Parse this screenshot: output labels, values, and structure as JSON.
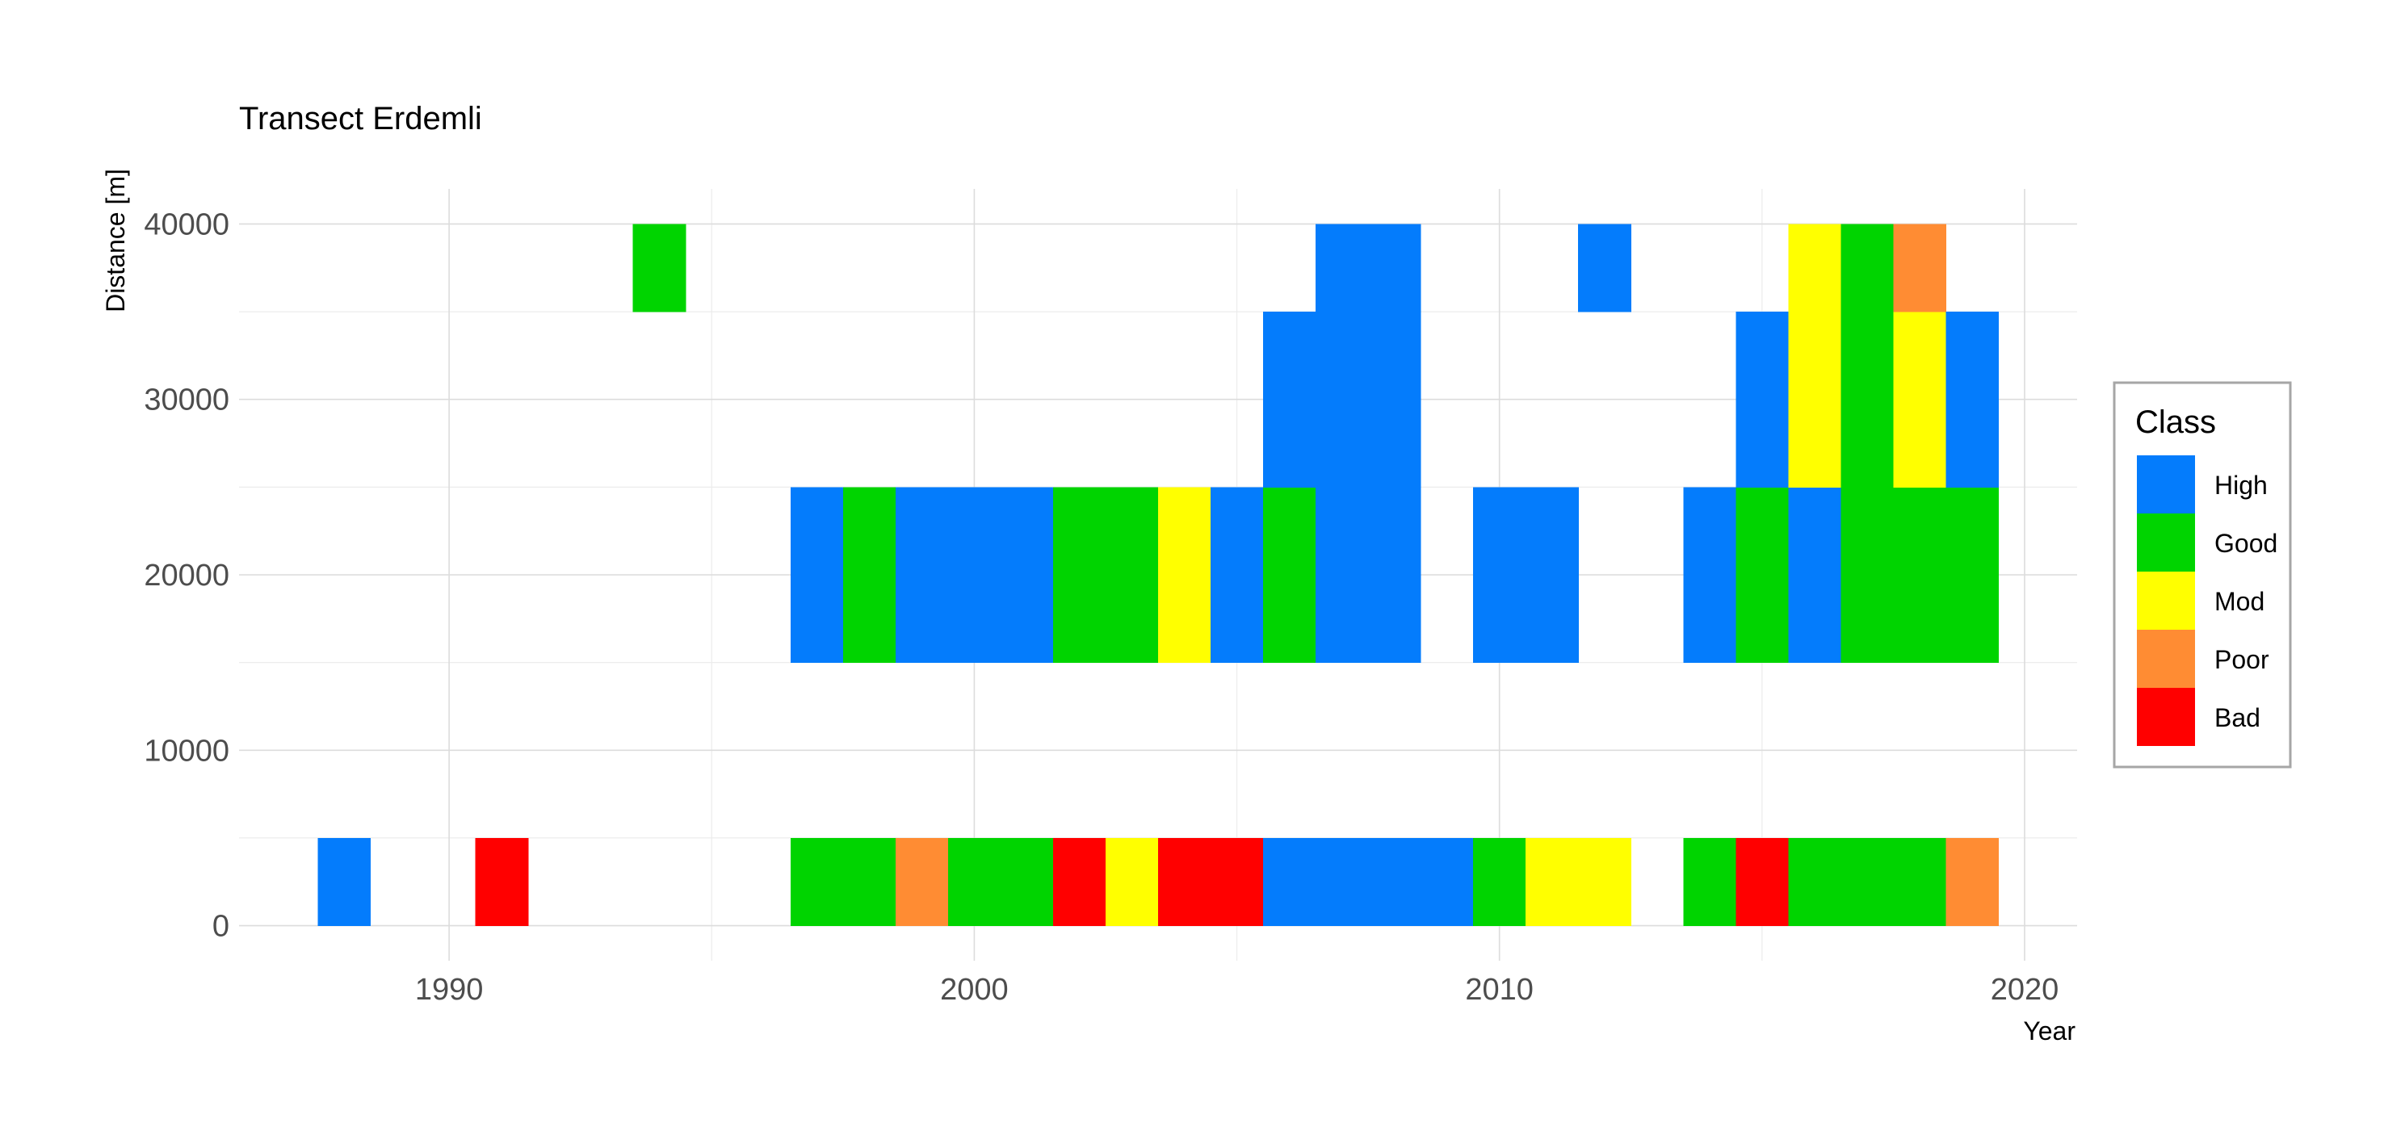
{
  "chart_data": {
    "type": "heatmap",
    "title": "Transect Erdemli",
    "xlabel": "Year",
    "ylabel": "Distance [m]",
    "xlim": [
      1986,
      2021
    ],
    "ylim": [
      -2000,
      42000
    ],
    "x_ticks": [
      1990,
      2000,
      2010,
      2020
    ],
    "y_ticks": [
      0,
      10000,
      20000,
      30000,
      40000
    ],
    "grid": true,
    "legend": {
      "title": "Class",
      "position": "right",
      "entries": [
        {
          "label": "High",
          "color": "#047cfc"
        },
        {
          "label": "Good",
          "color": "#00d400"
        },
        {
          "label": "Mod",
          "color": "#ffff00"
        },
        {
          "label": "Poor",
          "color": "#ff8c33"
        },
        {
          "label": "Bad",
          "color": "#ff0000"
        }
      ]
    },
    "y_levels": [
      0,
      10000,
      20000,
      30000,
      40000
    ],
    "cells": [
      {
        "year": 1988,
        "distance": 0,
        "class": "High"
      },
      {
        "year": 1991,
        "distance": 0,
        "class": "Bad"
      },
      {
        "year": 1994,
        "distance": 40000,
        "class": "Good"
      },
      {
        "year": 1997,
        "distance": 0,
        "class": "Good"
      },
      {
        "year": 1997,
        "distance": 20000,
        "class": "High"
      },
      {
        "year": 1998,
        "distance": 0,
        "class": "Good"
      },
      {
        "year": 1998,
        "distance": 20000,
        "class": "Good"
      },
      {
        "year": 1999,
        "distance": 0,
        "class": "Poor"
      },
      {
        "year": 1999,
        "distance": 20000,
        "class": "High"
      },
      {
        "year": 2000,
        "distance": 0,
        "class": "Good"
      },
      {
        "year": 2000,
        "distance": 20000,
        "class": "High"
      },
      {
        "year": 2001,
        "distance": 0,
        "class": "Good"
      },
      {
        "year": 2001,
        "distance": 20000,
        "class": "High"
      },
      {
        "year": 2002,
        "distance": 0,
        "class": "Bad"
      },
      {
        "year": 2002,
        "distance": 20000,
        "class": "Good"
      },
      {
        "year": 2003,
        "distance": 0,
        "class": "Mod"
      },
      {
        "year": 2003,
        "distance": 20000,
        "class": "Good"
      },
      {
        "year": 2004,
        "distance": 0,
        "class": "Bad"
      },
      {
        "year": 2004,
        "distance": 20000,
        "class": "Mod"
      },
      {
        "year": 2005,
        "distance": 0,
        "class": "Bad"
      },
      {
        "year": 2005,
        "distance": 20000,
        "class": "High"
      },
      {
        "year": 2006,
        "distance": 0,
        "class": "High"
      },
      {
        "year": 2006,
        "distance": 20000,
        "class": "Good"
      },
      {
        "year": 2006,
        "distance": 30000,
        "class": "High"
      },
      {
        "year": 2007,
        "distance": 0,
        "class": "High"
      },
      {
        "year": 2007,
        "distance": 20000,
        "class": "High"
      },
      {
        "year": 2007,
        "distance": 30000,
        "class": "High"
      },
      {
        "year": 2007,
        "distance": 40000,
        "class": "High"
      },
      {
        "year": 2008,
        "distance": 0,
        "class": "High"
      },
      {
        "year": 2008,
        "distance": 20000,
        "class": "High"
      },
      {
        "year": 2008,
        "distance": 30000,
        "class": "High"
      },
      {
        "year": 2008,
        "distance": 40000,
        "class": "High"
      },
      {
        "year": 2009,
        "distance": 0,
        "class": "High"
      },
      {
        "year": 2010,
        "distance": 0,
        "class": "Good"
      },
      {
        "year": 2010,
        "distance": 20000,
        "class": "High"
      },
      {
        "year": 2011,
        "distance": 0,
        "class": "Mod"
      },
      {
        "year": 2011,
        "distance": 20000,
        "class": "High"
      },
      {
        "year": 2012,
        "distance": 0,
        "class": "Mod"
      },
      {
        "year": 2012,
        "distance": 40000,
        "class": "High"
      },
      {
        "year": 2014,
        "distance": 0,
        "class": "Good"
      },
      {
        "year": 2014,
        "distance": 20000,
        "class": "High"
      },
      {
        "year": 2015,
        "distance": 0,
        "class": "Bad"
      },
      {
        "year": 2015,
        "distance": 20000,
        "class": "Good"
      },
      {
        "year": 2015,
        "distance": 30000,
        "class": "High"
      },
      {
        "year": 2016,
        "distance": 0,
        "class": "Good"
      },
      {
        "year": 2016,
        "distance": 20000,
        "class": "High"
      },
      {
        "year": 2016,
        "distance": 30000,
        "class": "Mod"
      },
      {
        "year": 2016,
        "distance": 40000,
        "class": "Mod"
      },
      {
        "year": 2017,
        "distance": 0,
        "class": "Good"
      },
      {
        "year": 2017,
        "distance": 20000,
        "class": "Good"
      },
      {
        "year": 2017,
        "distance": 30000,
        "class": "Good"
      },
      {
        "year": 2017,
        "distance": 40000,
        "class": "Good"
      },
      {
        "year": 2018,
        "distance": 0,
        "class": "Good"
      },
      {
        "year": 2018,
        "distance": 20000,
        "class": "Good"
      },
      {
        "year": 2018,
        "distance": 30000,
        "class": "Mod"
      },
      {
        "year": 2018,
        "distance": 40000,
        "class": "Poor"
      },
      {
        "year": 2019,
        "distance": 0,
        "class": "Poor"
      },
      {
        "year": 2019,
        "distance": 20000,
        "class": "Good"
      },
      {
        "year": 2019,
        "distance": 30000,
        "class": "High"
      }
    ]
  }
}
